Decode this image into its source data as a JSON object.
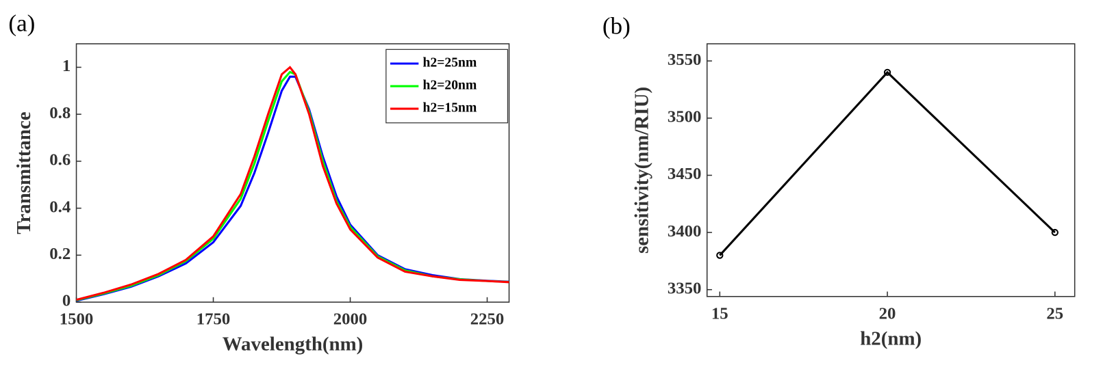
{
  "chart_data": [
    {
      "type": "line",
      "label": "(a)",
      "xlabel": "Wavelength(nm)",
      "ylabel": "Transmittance",
      "x": [
        1500,
        1550,
        1600,
        1650,
        1700,
        1750,
        1800,
        1825,
        1850,
        1875,
        1890,
        1900,
        1925,
        1950,
        1975,
        2000,
        2050,
        2100,
        2150,
        2200,
        2250,
        2290
      ],
      "series": [
        {
          "name": "h2=25nm",
          "color": "#0000ff",
          "values": [
            0.006,
            0.034,
            0.066,
            0.11,
            0.165,
            0.255,
            0.41,
            0.55,
            0.72,
            0.9,
            0.96,
            0.96,
            0.82,
            0.62,
            0.45,
            0.33,
            0.2,
            0.14,
            0.115,
            0.098,
            0.091,
            0.087
          ]
        },
        {
          "name": "h2=20nm",
          "color": "#00ff00",
          "values": [
            0.008,
            0.037,
            0.07,
            0.115,
            0.175,
            0.27,
            0.44,
            0.59,
            0.77,
            0.94,
            0.98,
            0.97,
            0.81,
            0.6,
            0.43,
            0.32,
            0.195,
            0.135,
            0.11,
            0.097,
            0.09,
            0.086
          ]
        },
        {
          "name": "h2=15nm",
          "color": "#ff0000",
          "values": [
            0.01,
            0.04,
            0.075,
            0.12,
            0.18,
            0.28,
            0.46,
            0.62,
            0.8,
            0.97,
            1.0,
            0.97,
            0.8,
            0.58,
            0.42,
            0.31,
            0.19,
            0.13,
            0.11,
            0.095,
            0.09,
            0.085
          ]
        }
      ],
      "xlim": [
        1500,
        2290
      ],
      "xticks": [
        1500,
        1750,
        2000,
        2250
      ],
      "ylim": [
        0,
        1.1
      ],
      "yticks": [
        0,
        0.2,
        0.4,
        0.6,
        0.8,
        1
      ],
      "legend": "upper right"
    },
    {
      "type": "line",
      "label": "(b)",
      "xlabel": "h2(nm)",
      "ylabel": "sensitivity(nm/RIU)",
      "x": [
        15,
        20,
        25
      ],
      "series": [
        {
          "color": "#000000",
          "values": [
            3380,
            3540,
            3400
          ],
          "markers": true
        }
      ],
      "xlim": [
        14.62,
        25.59
      ],
      "xticks": [
        15,
        20,
        25
      ],
      "ylim": [
        3344,
        3565
      ],
      "yticks": [
        3350,
        3400,
        3450,
        3500,
        3550
      ]
    }
  ]
}
